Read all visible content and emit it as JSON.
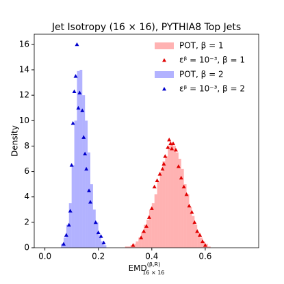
{
  "chart_data": {
    "type": "histogram",
    "title": "Jet Isotropy (16 × 16), PYTHIA8 Top Jets",
    "xlabel": {
      "text": "EMD",
      "sup": "(β,R)",
      "sub": "16 × 16"
    },
    "ylabel": "Density",
    "xlim": [
      -0.04,
      0.8
    ],
    "ylim": [
      0,
      16.8
    ],
    "xticks": [
      {
        "value": 0,
        "label": "0.0"
      },
      0.2,
      0.4,
      0.6
    ],
    "yticks": [
      0,
      2,
      4,
      6,
      8,
      10,
      12,
      14,
      16
    ],
    "legend": "upper right",
    "series": [
      {
        "name": "POT, β = 1",
        "kind": "hist",
        "color": "#ff0000",
        "alpha": 0.3,
        "bins": [
          0.3,
          0.31,
          0.32,
          0.33,
          0.34,
          0.35,
          0.36,
          0.37,
          0.38,
          0.39,
          0.4,
          0.41,
          0.42,
          0.43,
          0.44,
          0.45,
          0.46,
          0.47,
          0.48,
          0.49,
          0.5,
          0.51,
          0.52,
          0.53,
          0.54,
          0.55,
          0.56,
          0.57,
          0.58,
          0.59,
          0.6,
          0.61,
          0.62
        ],
        "values": [
          0.1,
          0.1,
          0.2,
          0.3,
          0.5,
          0.8,
          1.2,
          1.8,
          2.2,
          3,
          3.5,
          4.2,
          5.2,
          6,
          6.8,
          7.2,
          8,
          8.3,
          8,
          7.5,
          7,
          6.2,
          5,
          4.2,
          3.2,
          2.5,
          1.8,
          1.2,
          0.8,
          0.5,
          0.3,
          0.1
        ]
      },
      {
        "name": "εᵝ = 10⁻³, β = 1",
        "kind": "scatter",
        "marker": "triangle",
        "color": "#e00000",
        "x": [
          0.33,
          0.36,
          0.37,
          0.38,
          0.39,
          0.4,
          0.41,
          0.42,
          0.43,
          0.44,
          0.445,
          0.45,
          0.46,
          0.465,
          0.47,
          0.475,
          0.48,
          0.49,
          0.5,
          0.51,
          0.52,
          0.53,
          0.54,
          0.55,
          0.56,
          0.57,
          0.58,
          0.59,
          0.6
        ],
        "values": [
          0.2,
          0.8,
          1.3,
          1.7,
          2.4,
          3.1,
          4.8,
          5.3,
          5.8,
          6.2,
          6.6,
          7.2,
          7.9,
          8.5,
          8.2,
          7.8,
          8.2,
          7.7,
          6.4,
          5.5,
          4.8,
          4.2,
          3.3,
          2.8,
          2.0,
          1.3,
          1.0,
          0.5,
          0.2
        ]
      },
      {
        "name": "POT, β = 2",
        "kind": "hist",
        "color": "#0000ff",
        "alpha": 0.3,
        "bins": [
          0.06,
          0.07,
          0.08,
          0.09,
          0.1,
          0.11,
          0.12,
          0.13,
          0.14,
          0.15,
          0.16,
          0.17,
          0.18,
          0.19,
          0.2,
          0.21,
          0.22,
          0.23
        ],
        "values": [
          0.3,
          0.8,
          1.8,
          3.5,
          6.5,
          10,
          13.9,
          14,
          12,
          10,
          7.5,
          5,
          3,
          2,
          1,
          0.5,
          0.2
        ]
      },
      {
        "name": "εᵝ = 10⁻³, β = 2",
        "kind": "scatter",
        "marker": "triangle",
        "color": "#0000cc",
        "x": [
          0.07,
          0.08,
          0.09,
          0.095,
          0.1,
          0.105,
          0.11,
          0.115,
          0.12,
          0.125,
          0.13,
          0.14,
          0.145,
          0.15,
          0.155,
          0.165,
          0.17,
          0.19,
          0.2,
          0.21,
          0.22
        ],
        "values": [
          0.3,
          1,
          1.8,
          2.9,
          6.5,
          9.8,
          12.3,
          13.5,
          16,
          11,
          12.2,
          10.8,
          8.7,
          7.4,
          6.2,
          4.5,
          3.6,
          2,
          1.2,
          0.9,
          0.4
        ]
      }
    ]
  }
}
